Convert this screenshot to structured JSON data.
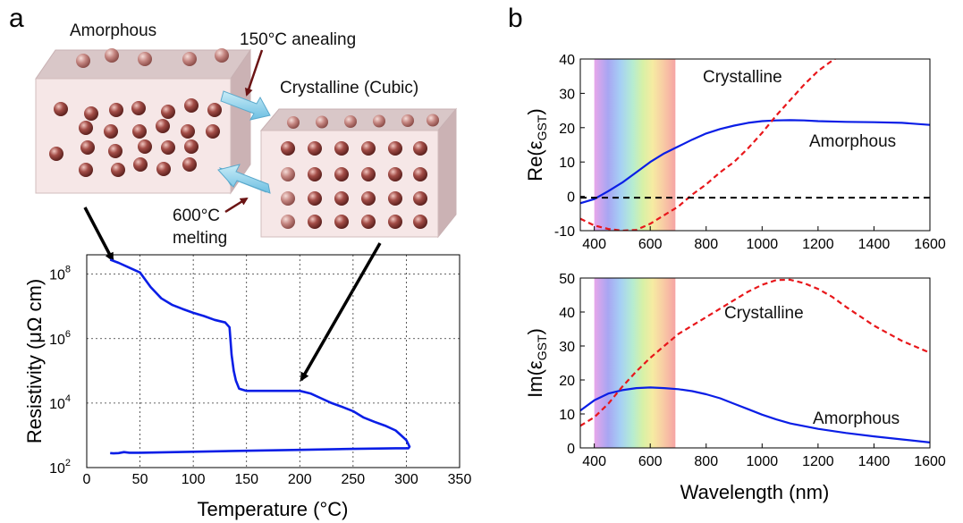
{
  "panels": {
    "a": "a",
    "b": "b"
  },
  "schematic": {
    "amorphous_label": "Amorphous",
    "crystalline_label": "Crystalline (Cubic)",
    "anneal_label": "150°C anealing",
    "melt_label_line1": "600°C",
    "melt_label_line2": "melting"
  },
  "colors": {
    "blue": "#0a1ee6",
    "red": "#e8171b",
    "sphere": "#8c3a36",
    "box_face": "#f4e6e6",
    "arrow": "#8fd0ea"
  },
  "chart_data": [
    {
      "id": "resistivity",
      "type": "line",
      "xlabel": "Temperature (°C)",
      "ylabel": "Resistivity (μΩ cm)",
      "xlim": [
        0,
        350
      ],
      "ylim_log10": [
        2,
        8.6
      ],
      "y_scale": "log",
      "grid": true,
      "x_ticks": [
        "0",
        "50",
        "100",
        "150",
        "200",
        "250",
        "300",
        "350"
      ],
      "y_ticks": [
        {
          "base": "10",
          "exp": "2"
        },
        {
          "base": "10",
          "exp": "4"
        },
        {
          "base": "10",
          "exp": "6"
        },
        {
          "base": "10",
          "exp": "8"
        }
      ],
      "series": [
        {
          "color": "blue",
          "x": [
            22,
            30,
            40,
            50,
            60,
            70,
            80,
            90,
            100,
            110,
            120,
            130,
            134,
            136,
            138,
            140,
            143,
            150,
            170,
            200,
            210,
            220,
            230,
            240,
            250,
            260,
            270,
            280,
            290,
            295,
            300,
            303,
            302,
            290,
            250,
            200,
            150,
            100,
            50,
            40,
            35,
            30,
            25,
            22
          ],
          "y_log10": [
            8.45,
            8.35,
            8.2,
            8.05,
            7.6,
            7.25,
            7.05,
            6.92,
            6.8,
            6.7,
            6.58,
            6.5,
            6.35,
            5.5,
            5.0,
            4.7,
            4.45,
            4.38,
            4.38,
            4.38,
            4.3,
            4.15,
            4.0,
            3.88,
            3.75,
            3.55,
            3.42,
            3.3,
            3.15,
            3.0,
            2.85,
            2.65,
            2.6,
            2.6,
            2.58,
            2.55,
            2.52,
            2.49,
            2.46,
            2.46,
            2.48,
            2.45,
            2.44,
            2.45
          ]
        }
      ]
    },
    {
      "id": "re_eps",
      "type": "line",
      "xlabel": "",
      "ylabel": "Re(εGST)",
      "ylabel_main": "Re(ε",
      "ylabel_sub": "GST",
      "ylabel_close": ")",
      "xlim": [
        350,
        1600
      ],
      "ylim": [
        -10,
        40
      ],
      "x_ticks": [
        "400",
        "600",
        "800",
        "1000",
        "1200",
        "1400",
        "1600"
      ],
      "y_ticks": [
        "-10",
        "0",
        "10",
        "20",
        "30",
        "40"
      ],
      "visible_band": [
        400,
        690
      ],
      "annotations": {
        "crystalline": "Crystalline",
        "amorphous": "Amorphous"
      },
      "series": [
        {
          "label": "Amorphous",
          "color": "blue",
          "style": "solid",
          "x": [
            350,
            400,
            450,
            500,
            550,
            600,
            650,
            700,
            750,
            800,
            850,
            900,
            950,
            1000,
            1050,
            1100,
            1150,
            1200,
            1300,
            1400,
            1500,
            1600
          ],
          "y": [
            -2,
            -0.8,
            1.5,
            4,
            7,
            10,
            12.5,
            14.5,
            16.5,
            18.3,
            19.6,
            20.6,
            21.4,
            21.9,
            22.1,
            22.2,
            22.1,
            21.9,
            21.7,
            21.6,
            21.4,
            20.8
          ]
        },
        {
          "label": "Crystalline",
          "color": "red",
          "style": "dashed",
          "x": [
            350,
            400,
            450,
            500,
            550,
            600,
            650,
            700,
            750,
            800,
            850,
            900,
            950,
            1000,
            1050,
            1100,
            1150,
            1200,
            1250,
            1270
          ],
          "y": [
            -6.5,
            -8.5,
            -9.5,
            -10,
            -9.8,
            -8,
            -5.5,
            -3,
            0.5,
            3.5,
            7,
            10,
            14,
            18.5,
            23.5,
            28,
            32.5,
            36.5,
            39.5,
            40.5
          ]
        },
        {
          "label": "",
          "color": "black",
          "style": "dashed",
          "x": [
            350,
            1600
          ],
          "y": [
            -0.4,
            -0.4
          ]
        }
      ]
    },
    {
      "id": "im_eps",
      "type": "line",
      "xlabel": "Wavelength (nm)",
      "ylabel": "Im(εGST)",
      "ylabel_main": "Im(ε",
      "ylabel_sub": "GST",
      "ylabel_close": ")",
      "xlim": [
        350,
        1600
      ],
      "ylim": [
        0,
        50
      ],
      "x_ticks": [
        "400",
        "600",
        "800",
        "1000",
        "1200",
        "1400",
        "1600"
      ],
      "y_ticks": [
        "0",
        "10",
        "20",
        "30",
        "40",
        "50"
      ],
      "visible_band": [
        400,
        690
      ],
      "annotations": {
        "crystalline": "Crystalline",
        "amorphous": "Amorphous"
      },
      "series": [
        {
          "label": "Amorphous",
          "color": "blue",
          "style": "solid",
          "x": [
            350,
            400,
            450,
            500,
            550,
            600,
            650,
            700,
            750,
            800,
            850,
            900,
            950,
            1000,
            1050,
            1100,
            1200,
            1300,
            1400,
            1500,
            1600
          ],
          "y": [
            11,
            14,
            16,
            17,
            17.6,
            17.8,
            17.6,
            17.3,
            16.7,
            15.8,
            14.6,
            13,
            11.4,
            9.8,
            8.4,
            7.2,
            5.6,
            4.4,
            3.4,
            2.5,
            1.6
          ]
        },
        {
          "label": "Crystalline",
          "color": "red",
          "style": "dashed",
          "x": [
            350,
            400,
            450,
            500,
            550,
            600,
            650,
            700,
            750,
            800,
            850,
            900,
            950,
            1000,
            1050,
            1100,
            1150,
            1200,
            1250,
            1300,
            1400,
            1500,
            1600
          ],
          "y": [
            6.5,
            9,
            13,
            18,
            22.5,
            26.5,
            30,
            33.5,
            36,
            38.5,
            41,
            43.5,
            46,
            48,
            49.4,
            49.5,
            48.5,
            46.8,
            44.5,
            41.5,
            36,
            31.5,
            28
          ]
        }
      ]
    }
  ]
}
